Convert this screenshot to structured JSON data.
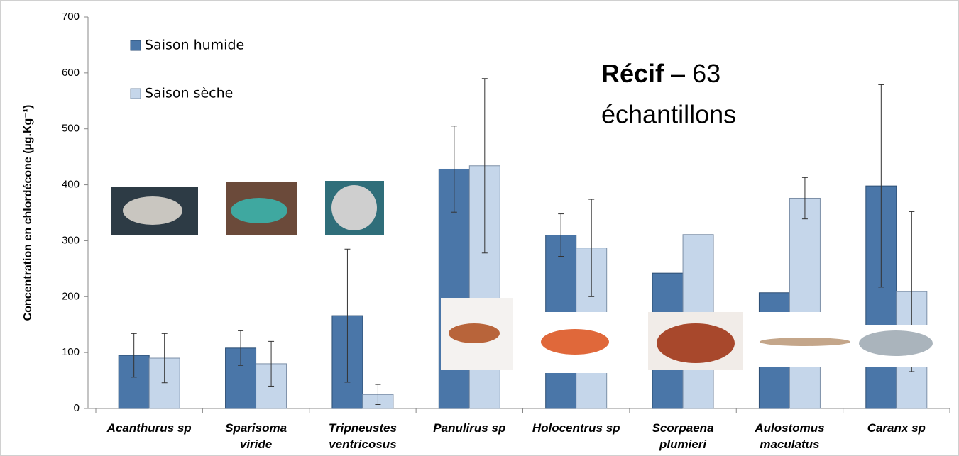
{
  "chart_data": {
    "type": "bar",
    "y_label": "Concentration en chlordécone (µg.Kg⁻¹)",
    "annotation": [
      "Récif",
      "– 63",
      "échantillons"
    ],
    "categories": [
      "Acanthurus sp",
      "Sparisoma\nviride",
      "Tripneustes\nventricosus",
      "Panulirus sp",
      "Holocentrus sp",
      "Scorpaena\nplumieri",
      "Aulostomus\nmaculatus",
      "Caranx sp"
    ],
    "series": [
      {
        "name": "Saison humide",
        "color": "#4a76a8",
        "values": [
          95,
          108,
          166,
          428,
          310,
          242,
          207,
          398
        ],
        "errors": [
          39,
          31,
          119,
          77,
          38,
          null,
          null,
          181
        ]
      },
      {
        "name": "Saison sèche",
        "color": "#c5d6ea",
        "values": [
          90,
          80,
          25,
          434,
          287,
          311,
          376,
          209
        ],
        "errors": [
          44,
          40,
          18,
          156,
          87,
          null,
          37,
          143
        ]
      }
    ],
    "ylim": [
      0,
      700
    ],
    "yticks": [
      0,
      100,
      200,
      300,
      400,
      500,
      600,
      700
    ],
    "legend": "top-left"
  }
}
